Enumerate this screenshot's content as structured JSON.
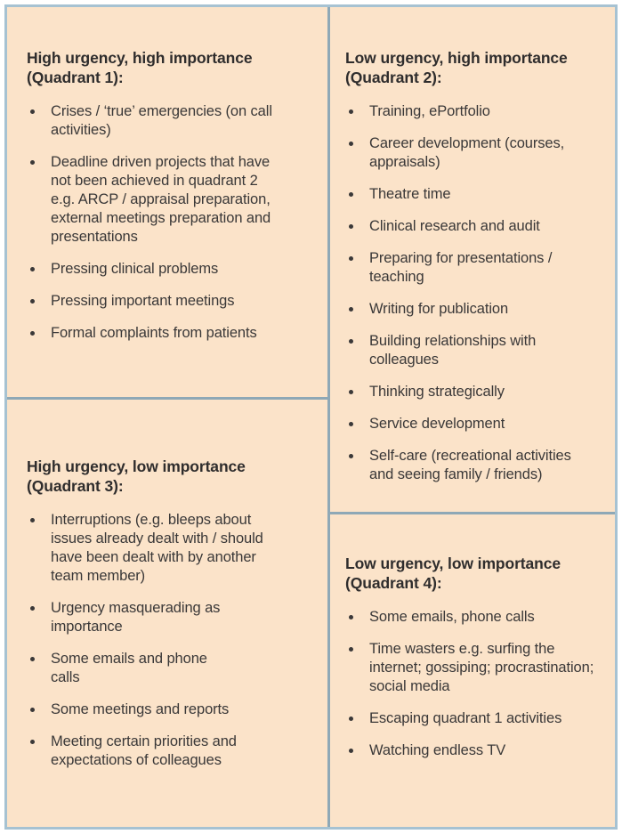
{
  "theme": {
    "page_bg": "#ffffff",
    "panel_bg": "#fbe3c9",
    "outer_border": "#a6c2d2",
    "divider": "#8ea8b6",
    "text": "#3a3838",
    "heading_text": "#2f2d2d"
  },
  "quadrants": {
    "q1": {
      "title": "High urgency, high importance\n(Quadrant 1):",
      "items": [
        "Crises / ‘true’ emergencies (on call\nactivities)",
        "Deadline driven projects that have\nnot been achieved in quadrant 2\ne.g. ARCP / appraisal preparation,\nexternal meetings preparation and\npresentations",
        "Pressing clinical problems",
        "Pressing important meetings",
        "Formal complaints from patients"
      ]
    },
    "q2": {
      "title": "Low urgency, high importance\n(Quadrant 2):",
      "items": [
        "Training, ePortfolio",
        "Career development (courses,\nappraisals)",
        "Theatre time",
        "Clinical research and audit",
        "Preparing for presentations /\nteaching",
        "Writing for publication",
        "Building relationships with\ncolleagues",
        "Thinking strategically",
        "Service development",
        "Self-care (recreational activities\nand seeing family / friends)"
      ]
    },
    "q3": {
      "title": "High urgency, low importance\n(Quadrant 3):",
      "items": [
        "Interruptions (e.g. bleeps about\nissues already dealt with / should\nhave been dealt with by another\nteam member)",
        "Urgency masquerading as\nimportance",
        "Some emails and phone\ncalls",
        "Some meetings and reports",
        "Meeting certain priorities and\nexpectations of colleagues"
      ]
    },
    "q4": {
      "title": "Low urgency, low importance\n(Quadrant 4):",
      "items": [
        "Some emails, phone calls",
        "Time wasters e.g. surfing the\ninternet; gossiping; procrastination;\nsocial media",
        "Escaping quadrant 1 activities",
        "Watching endless TV"
      ]
    }
  }
}
